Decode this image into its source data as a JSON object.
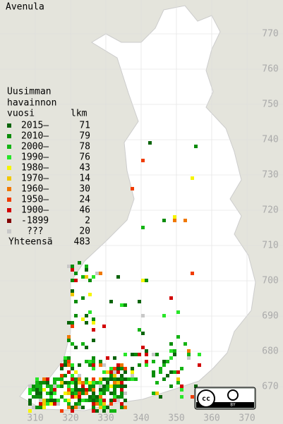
{
  "title": "Avenula",
  "legend": {
    "heading": [
      "Uusimman",
      "havainnon"
    ],
    "year_header": "vuosi",
    "count_header": "lkm",
    "entries": [
      {
        "label": "2015–",
        "count": 71,
        "color": "#0a640a"
      },
      {
        "label": "2010–",
        "count": 79,
        "color": "#0a8c0a"
      },
      {
        "label": "2000–",
        "count": 78,
        "color": "#14b414"
      },
      {
        "label": "1990–",
        "count": 76,
        "color": "#28e628"
      },
      {
        "label": "1980–",
        "count": 43,
        "color": "#f5f500"
      },
      {
        "label": "1970–",
        "count": 14,
        "color": "#f0c800"
      },
      {
        "label": "1960–",
        "count": 30,
        "color": "#f07800"
      },
      {
        "label": "1950–",
        "count": 24,
        "color": "#f03c00"
      },
      {
        "label": "1900–",
        "count": 46,
        "color": "#d20000"
      },
      {
        "label": "-1899",
        "count": 2,
        "color": "#820000"
      },
      {
        "label": "???",
        "count": 20,
        "color": "#c8c8c8"
      }
    ],
    "total_label": "Yhteensä",
    "total": 483
  },
  "grid": {
    "x_labels": [
      310,
      320,
      330,
      340,
      350,
      360,
      370
    ],
    "y_labels": [
      770,
      760,
      750,
      740,
      730,
      720,
      710,
      700,
      690,
      680,
      670
    ]
  }
}
